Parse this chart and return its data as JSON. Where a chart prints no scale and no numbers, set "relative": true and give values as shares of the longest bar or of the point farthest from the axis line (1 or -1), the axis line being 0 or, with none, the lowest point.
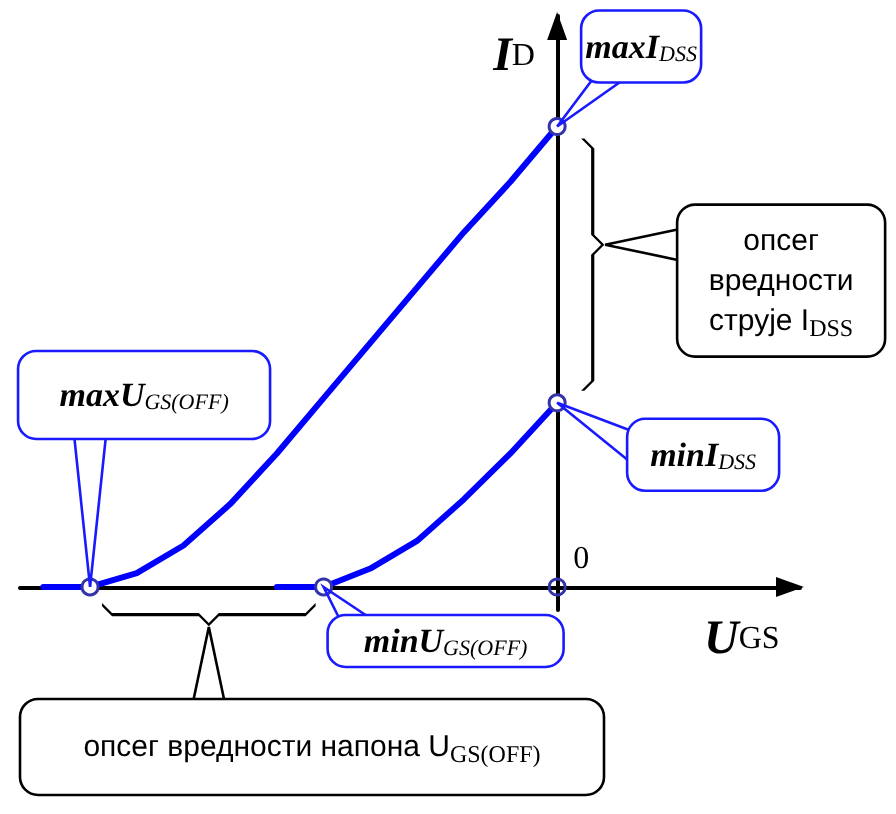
{
  "chart_data": {
    "type": "line",
    "relative": true,
    "xlabel": "U$_{GS}$",
    "ylabel": "I$_{D}$",
    "categories": [
      null,
      null,
      null,
      null,
      null,
      null,
      null,
      null,
      null,
      null,
      null,
      null,
      null,
      null,
      null,
      null,
      null
    ],
    "series": [
      {
        "color": "#0000ff",
        "values": [
          0,
          0,
          0.03,
          0.09,
          0.18,
          0.29,
          0.41,
          0.53,
          0.65,
          0.77,
          0.88,
          1,
          null,
          null,
          null,
          null,
          null
        ]
      },
      {
        "color": "#0000ff",
        "values": [
          null,
          null,
          null,
          null,
          null,
          0,
          0,
          0.04,
          0.1,
          0.19,
          0.29,
          0.4,
          null,
          null,
          null,
          null,
          null
        ]
      }
    ],
    "annotations": [
      "maxI$_{DSS}$",
      "minI$_{DSS}$",
      "maxU$_{GS(OFF)}$",
      "minU$_{GS(OFF)}$",
      "0",
      "опсег\nвредности\nструје I$_{DSS}$",
      "опсег вредности напона U$_{GS(OFF)}$"
    ]
  }
}
